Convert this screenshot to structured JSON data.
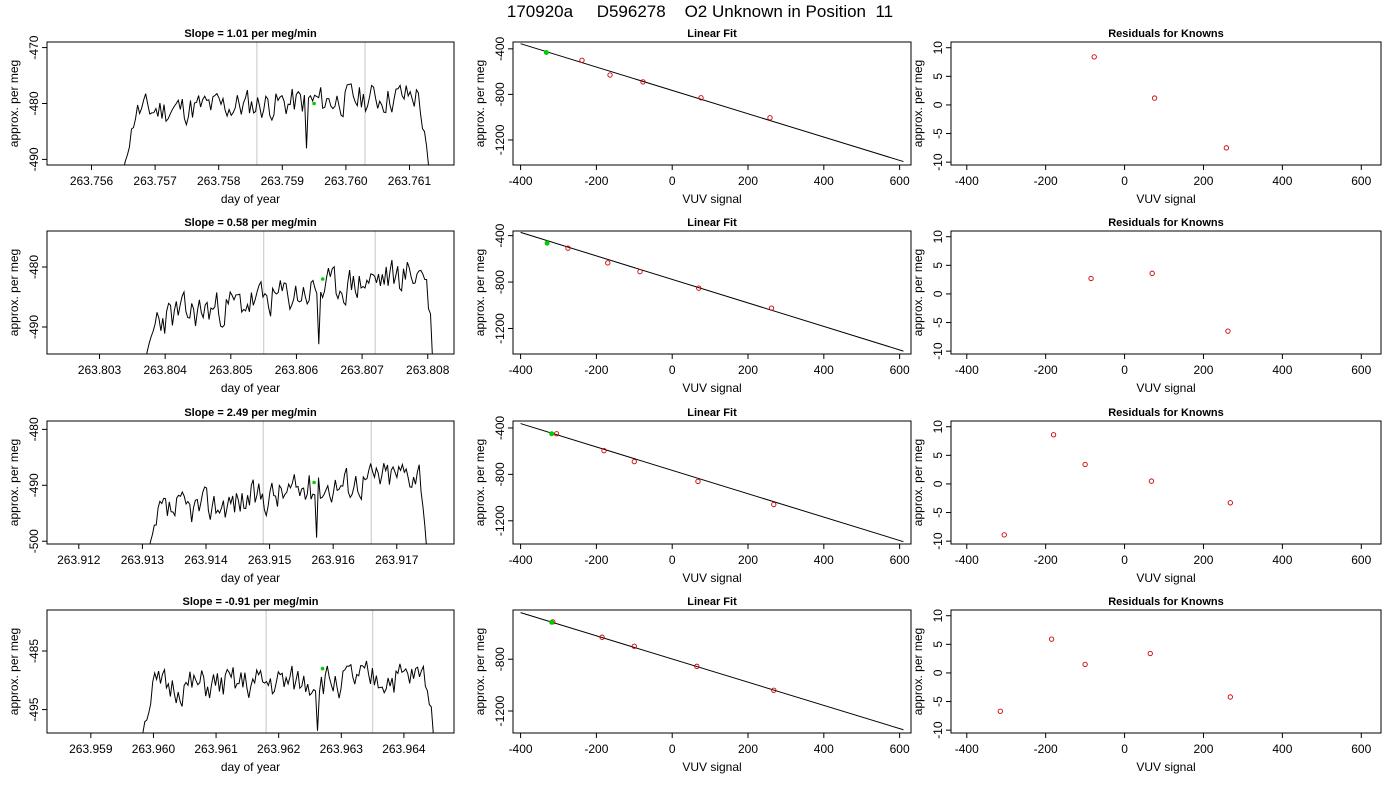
{
  "title": "170920a     D596278    O2 Unknown in Position  11",
  "colors": {
    "line": "#000000",
    "known": "#cc0000",
    "reference": "#00cc00",
    "marker": "#d3d3d3"
  },
  "chart_data": [
    {
      "type": "line",
      "row": 0,
      "panel": "time",
      "title": "Slope =  1.01  per meg/min",
      "xlabel": "day of year",
      "ylabel": "approx. per meg",
      "xlim": [
        263.7553,
        263.7617
      ],
      "ylim": [
        -491,
        -469
      ],
      "xticks": [
        "263.756",
        "263.757",
        "263.758",
        "263.759",
        "263.760",
        "263.761"
      ],
      "yticks": [
        "-470",
        "-480",
        "-490"
      ],
      "ytick_values": [
        -470,
        -480,
        -490
      ],
      "vlines": [
        263.7586,
        263.7603
      ],
      "reference_point": [
        263.7595,
        -480
      ],
      "trace": {
        "start": 263.7565,
        "end": 263.7613,
        "level_start": -481.5,
        "level_end": -478.5,
        "noise": 2.6,
        "seed": 11
      }
    },
    {
      "type": "line",
      "row": 0,
      "panel": "fit",
      "title": "Linear Fit",
      "xlabel": "VUV signal",
      "ylabel": "approx. per meg",
      "xlim": [
        -420,
        630
      ],
      "ylim": [
        -1420,
        -340
      ],
      "xticks": [
        "-400",
        "-200",
        "0",
        "200",
        "400",
        "600"
      ],
      "xtick_values": [
        -400,
        -200,
        0,
        200,
        400,
        600
      ],
      "yticks": [
        "-400",
        "-800",
        "-1200"
      ],
      "ytick_values": [
        -400,
        -800,
        -1200
      ],
      "fit_line": [
        [
          -400,
          -355
        ],
        [
          610,
          -1390
        ]
      ],
      "reference": [
        [
          -332,
          -432
        ]
      ],
      "knowns": [
        [
          -238,
          -500
        ],
        [
          -164,
          -630
        ],
        [
          -77,
          -690
        ],
        [
          76,
          -830
        ],
        [
          258,
          -1005
        ]
      ]
    },
    {
      "type": "scatter",
      "row": 0,
      "panel": "resid",
      "title": "Residuals for Knowns",
      "xlabel": "VUV signal",
      "ylabel": "approx. per meg",
      "xlim": [
        -440,
        650
      ],
      "ylim": [
        -10.5,
        11
      ],
      "xticks": [
        "-400",
        "-200",
        "0",
        "200",
        "400",
        "600"
      ],
      "xtick_values": [
        -400,
        -200,
        0,
        200,
        400,
        600
      ],
      "yticks": [
        "10",
        "5",
        "0",
        "-5",
        "-10"
      ],
      "ytick_values": [
        10,
        5,
        0,
        -5,
        -10
      ],
      "points": [
        [
          -77,
          8.4
        ],
        [
          76,
          1.2
        ],
        [
          258,
          -7.5
        ]
      ]
    },
    {
      "type": "line",
      "row": 1,
      "panel": "time",
      "title": "Slope =  0.58  per meg/min",
      "xlabel": "day of year",
      "ylabel": "approx. per meg",
      "xlim": [
        263.8022,
        263.8084
      ],
      "ylim": [
        -494.5,
        -474
      ],
      "xticks": [
        "263.803",
        "263.804",
        "263.805",
        "263.806",
        "263.807",
        "263.808"
      ],
      "yticks": [
        "-480",
        "-490"
      ],
      "ytick_values": [
        -480,
        -490
      ],
      "vlines": [
        263.8055,
        263.8072
      ],
      "reference_point": [
        263.8064,
        -482
      ],
      "trace": {
        "start": 263.8037,
        "end": 263.8081,
        "level_start": -489,
        "level_end": -480.5,
        "noise": 2.8,
        "seed": 23
      }
    },
    {
      "type": "line",
      "row": 1,
      "panel": "fit",
      "title": "Linear Fit",
      "xlabel": "VUV signal",
      "ylabel": "approx. per meg",
      "xlim": [
        -420,
        630
      ],
      "ylim": [
        -1420,
        -360
      ],
      "xticks": [
        "-400",
        "-200",
        "0",
        "200",
        "400",
        "600"
      ],
      "xtick_values": [
        -400,
        -200,
        0,
        200,
        400,
        600
      ],
      "yticks": [
        "-400",
        "-800",
        "-1200"
      ],
      "ytick_values": [
        -400,
        -800,
        -1200
      ],
      "fit_line": [
        [
          -400,
          -372
        ],
        [
          610,
          -1395
        ]
      ],
      "reference": [
        [
          -330,
          -465
        ]
      ],
      "knowns": [
        [
          -275,
          -508
        ],
        [
          -170,
          -635
        ],
        [
          -85,
          -710
        ],
        [
          70,
          -852
        ],
        [
          262,
          -1025
        ]
      ]
    },
    {
      "type": "scatter",
      "row": 1,
      "panel": "resid",
      "title": "Residuals for Knowns",
      "xlabel": "VUV signal",
      "ylabel": "approx. per meg",
      "xlim": [
        -440,
        650
      ],
      "ylim": [
        -10.5,
        11
      ],
      "xticks": [
        "-400",
        "-200",
        "0",
        "200",
        "400",
        "600"
      ],
      "xtick_values": [
        -400,
        -200,
        0,
        200,
        400,
        600
      ],
      "yticks": [
        "10",
        "5",
        "0",
        "-5",
        "-10"
      ],
      "ytick_values": [
        10,
        5,
        0,
        -5,
        -10
      ],
      "points": [
        [
          -85,
          2.7
        ],
        [
          70,
          3.6
        ],
        [
          262,
          -6.5
        ]
      ]
    },
    {
      "type": "line",
      "row": 2,
      "panel": "time",
      "title": "Slope =  2.49  per meg/min",
      "xlabel": "day of year",
      "ylabel": "approx. per meg",
      "xlim": [
        263.9115,
        263.9179
      ],
      "ylim": [
        -500.5,
        -478.5
      ],
      "xticks": [
        "263.912",
        "263.913",
        "263.914",
        "263.915",
        "263.916",
        "263.917"
      ],
      "yticks": [
        "-480",
        "-490",
        "-500"
      ],
      "ytick_values": [
        -480,
        -490,
        -500
      ],
      "vlines": [
        263.9149,
        263.9166
      ],
      "reference_point": [
        263.9157,
        -489.5
      ],
      "trace": {
        "start": 263.9131,
        "end": 263.9175,
        "level_start": -495.5,
        "level_end": -487,
        "noise": 2.8,
        "seed": 37
      }
    },
    {
      "type": "line",
      "row": 2,
      "panel": "fit",
      "title": "Linear Fit",
      "xlabel": "VUV signal",
      "ylabel": "approx. per meg",
      "xlim": [
        -420,
        630
      ],
      "ylim": [
        -1400,
        -340
      ],
      "xticks": [
        "-400",
        "-200",
        "0",
        "200",
        "400",
        "600"
      ],
      "xtick_values": [
        -400,
        -200,
        0,
        200,
        400,
        600
      ],
      "yticks": [
        "-400",
        "-800",
        "-1200"
      ],
      "ytick_values": [
        -400,
        -800,
        -1200
      ],
      "fit_line": [
        [
          -400,
          -362
        ],
        [
          610,
          -1380
        ]
      ],
      "reference": [
        [
          -318,
          -450
        ]
      ],
      "knowns": [
        [
          -305,
          -450
        ],
        [
          -180,
          -595
        ],
        [
          -100,
          -690
        ],
        [
          68,
          -860
        ],
        [
          268,
          -1060
        ]
      ]
    },
    {
      "type": "scatter",
      "row": 2,
      "panel": "resid",
      "title": "Residuals for Knowns",
      "xlabel": "VUV signal",
      "ylabel": "approx. per meg",
      "xlim": [
        -440,
        650
      ],
      "ylim": [
        -10.5,
        11
      ],
      "xticks": [
        "-400",
        "-200",
        "0",
        "200",
        "400",
        "600"
      ],
      "xtick_values": [
        -400,
        -200,
        0,
        200,
        400,
        600
      ],
      "yticks": [
        "10",
        "5",
        "0",
        "-5",
        "-10"
      ],
      "ytick_values": [
        10,
        5,
        0,
        -5,
        -10
      ],
      "points": [
        [
          -305,
          -8.9
        ],
        [
          -180,
          8.6
        ],
        [
          -100,
          3.4
        ],
        [
          68,
          0.5
        ],
        [
          268,
          -3.3
        ]
      ]
    },
    {
      "type": "line",
      "row": 3,
      "panel": "time",
      "title": "Slope =  -0.91  per meg/min",
      "xlabel": "day of year",
      "ylabel": "approx. per meg",
      "xlim": [
        263.9583,
        263.9648
      ],
      "ylim": [
        -499,
        -478
      ],
      "xticks": [
        "263.959",
        "263.960",
        "263.961",
        "263.962",
        "263.963",
        "263.964"
      ],
      "yticks": [
        "-485",
        "-495"
      ],
      "ytick_values": [
        -485,
        -495
      ],
      "vlines": [
        263.9618,
        263.9635
      ],
      "reference_point": [
        263.9627,
        -488
      ],
      "trace": {
        "start": 263.9598,
        "end": 263.9645,
        "level_start": -491.5,
        "level_end": -489.5,
        "noise": 2.6,
        "seed": 51
      }
    },
    {
      "type": "line",
      "row": 3,
      "panel": "fit",
      "title": "Linear Fit",
      "xlabel": "VUV signal",
      "ylabel": "approx. per meg",
      "xlim": [
        -420,
        630
      ],
      "ylim": [
        -1370,
        -420
      ],
      "xticks": [
        "-400",
        "-200",
        "0",
        "200",
        "400",
        "600"
      ],
      "xtick_values": [
        -400,
        -200,
        0,
        200,
        400,
        600
      ],
      "yticks": [
        "-800",
        "-1200"
      ],
      "ytick_values": [
        -800,
        -1200
      ],
      "fit_line": [
        [
          -400,
          -440
        ],
        [
          610,
          -1345
        ]
      ],
      "reference": [
        [
          -318,
          -515
        ]
      ],
      "knowns": [
        [
          -315,
          -512
        ],
        [
          -185,
          -630
        ],
        [
          -100,
          -700
        ],
        [
          65,
          -855
        ],
        [
          268,
          -1040
        ]
      ]
    },
    {
      "type": "scatter",
      "row": 3,
      "panel": "resid",
      "title": "Residuals for Knowns",
      "xlabel": "VUV signal",
      "ylabel": "approx. per meg",
      "xlim": [
        -440,
        650
      ],
      "ylim": [
        -10.5,
        11
      ],
      "xticks": [
        "-400",
        "-200",
        "0",
        "200",
        "400",
        "600"
      ],
      "xtick_values": [
        -400,
        -200,
        0,
        200,
        400,
        600
      ],
      "yticks": [
        "10",
        "5",
        "0",
        "-5",
        "-10"
      ],
      "ytick_values": [
        10,
        5,
        0,
        -5,
        -10
      ],
      "points": [
        [
          -315,
          -6.7
        ],
        [
          -185,
          5.9
        ],
        [
          -100,
          1.5
        ],
        [
          65,
          3.4
        ],
        [
          268,
          -4.2
        ]
      ]
    }
  ]
}
